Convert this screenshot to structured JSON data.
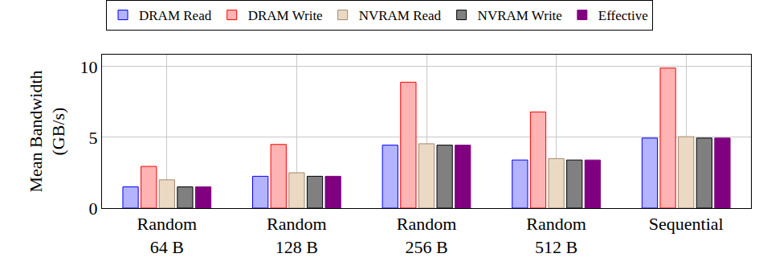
{
  "chart_data": {
    "type": "bar",
    "y_label": "Mean Bandwidth (GB/s)",
    "categories": [
      "Random 64 B",
      "Random 128 B",
      "Random 256 B",
      "Random 512 B",
      "Sequential"
    ],
    "series": [
      {
        "name": "DRAM Read",
        "color": "#b3b3ff",
        "values": [
          1.5,
          2.25,
          4.45,
          3.4,
          4.95
        ]
      },
      {
        "name": "DRAM Write",
        "color": "#ffb3b3",
        "values": [
          2.95,
          4.5,
          8.9,
          6.8,
          9.9
        ]
      },
      {
        "name": "NVRAM Read",
        "color": "#ecd9c4",
        "values": [
          2.0,
          2.5,
          4.55,
          3.5,
          5.05
        ]
      },
      {
        "name": "NVRAM Write",
        "color": "#808080",
        "values": [
          1.5,
          2.25,
          4.45,
          3.4,
          4.95
        ]
      },
      {
        "name": "Effective",
        "color": "#800080",
        "values": [
          1.5,
          2.25,
          4.45,
          3.4,
          4.95
        ]
      }
    ],
    "ylim": [
      0,
      10.85
    ],
    "yticks": [
      0,
      5,
      10
    ],
    "grid": true,
    "legend": "top"
  }
}
